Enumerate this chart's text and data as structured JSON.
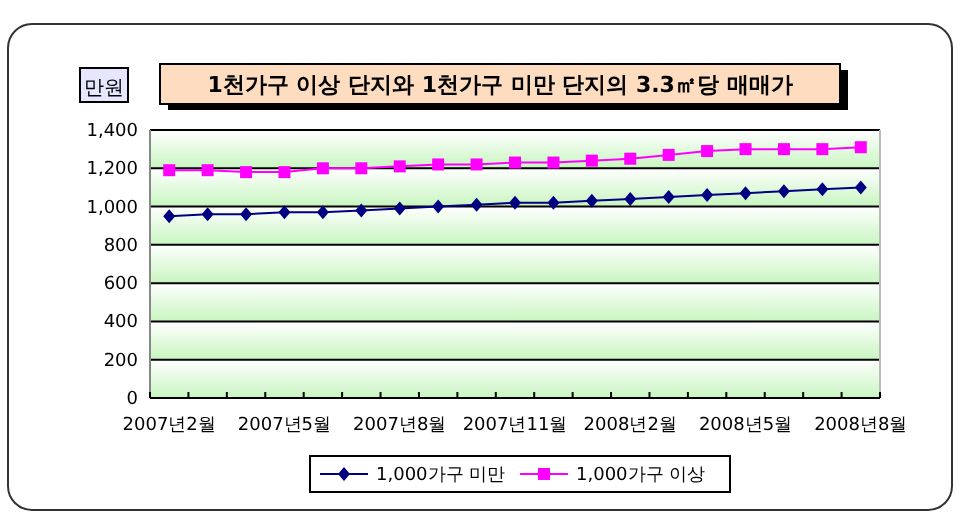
{
  "chart_data": {
    "type": "line",
    "title": "1천가구 이상 단지와 1천가구 미만 단지의 3.3㎡당 매매가",
    "ylabel": "만원",
    "categories": [
      "2007년2월",
      null,
      null,
      "2007년5월",
      null,
      null,
      "2007년8월",
      null,
      null,
      "2007년11월",
      null,
      null,
      "2008년2월",
      null,
      null,
      "2008년5월",
      null,
      null,
      "2008년8월"
    ],
    "series": [
      {
        "name": "1,000가구 미만",
        "color": "#000080",
        "marker": "diamond",
        "values": [
          950,
          960,
          960,
          970,
          970,
          980,
          990,
          1000,
          1010,
          1020,
          1020,
          1030,
          1040,
          1050,
          1060,
          1070,
          1080,
          1090,
          1100
        ]
      },
      {
        "name": "1,000가구 이상",
        "color": "#ff00ff",
        "marker": "square",
        "values": [
          1190,
          1190,
          1180,
          1180,
          1200,
          1200,
          1210,
          1220,
          1220,
          1230,
          1230,
          1240,
          1250,
          1270,
          1290,
          1300,
          1300,
          1300,
          1310
        ]
      }
    ],
    "ylim": [
      0,
      1400
    ],
    "yticks": [
      0,
      {
        "value": 200,
        "label": "200"
      },
      {
        "value": 400,
        "label": "400"
      },
      {
        "value": 600,
        "label": "600"
      },
      {
        "value": 800,
        "label": "800"
      },
      {
        "value": 1000,
        "label": "1,000"
      },
      {
        "value": 1200,
        "label": "1,200"
      },
      {
        "value": 1400,
        "label": "1,400"
      }
    ],
    "grid": "y",
    "legend": "bottom"
  }
}
